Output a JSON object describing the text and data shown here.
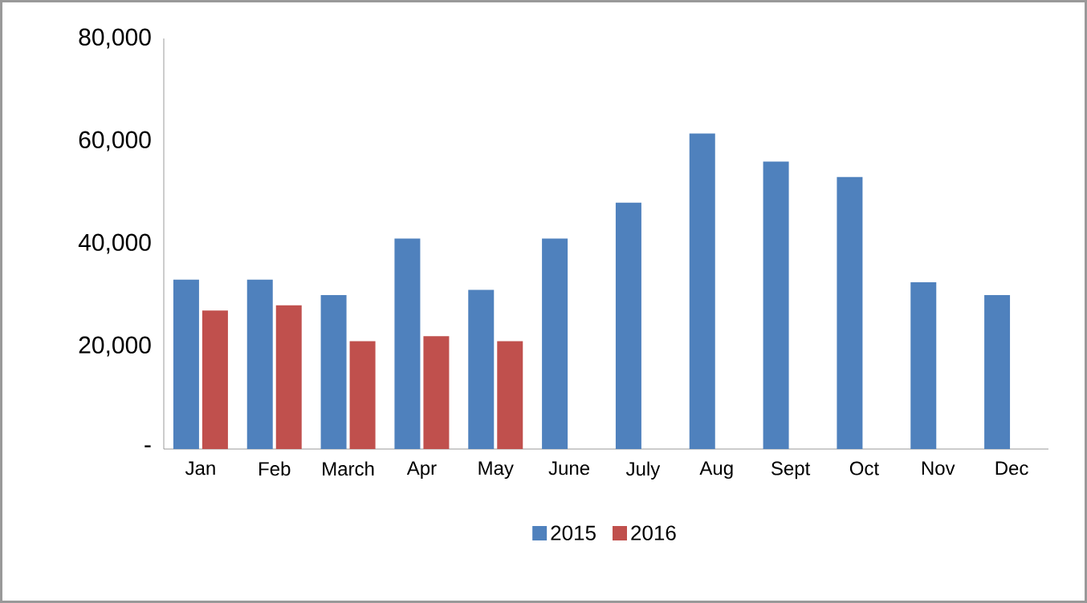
{
  "chart_data": {
    "type": "bar",
    "categories": [
      "Jan",
      "Feb",
      "March",
      "Apr",
      "May",
      "June",
      "July",
      "Aug",
      "Sept",
      "Oct",
      "Nov",
      "Dec"
    ],
    "series": [
      {
        "name": "2015",
        "color": "#4f81bd",
        "values": [
          33000,
          33000,
          30000,
          41000,
          31000,
          41000,
          48000,
          61500,
          56000,
          53000,
          32500,
          30000
        ]
      },
      {
        "name": "2016",
        "color": "#c0504d",
        "values": [
          27000,
          28000,
          21000,
          22000,
          21000,
          null,
          null,
          null,
          null,
          null,
          null,
          null
        ]
      }
    ],
    "ylim": [
      0,
      80000
    ],
    "yticks": [
      {
        "value": 0,
        "label": "-"
      },
      {
        "value": 20000,
        "label": "20,000"
      },
      {
        "value": 40000,
        "label": "40,000"
      },
      {
        "value": 60000,
        "label": "60,000"
      },
      {
        "value": 80000,
        "label": "80,000"
      }
    ],
    "grid": false,
    "legend": "bottom"
  }
}
